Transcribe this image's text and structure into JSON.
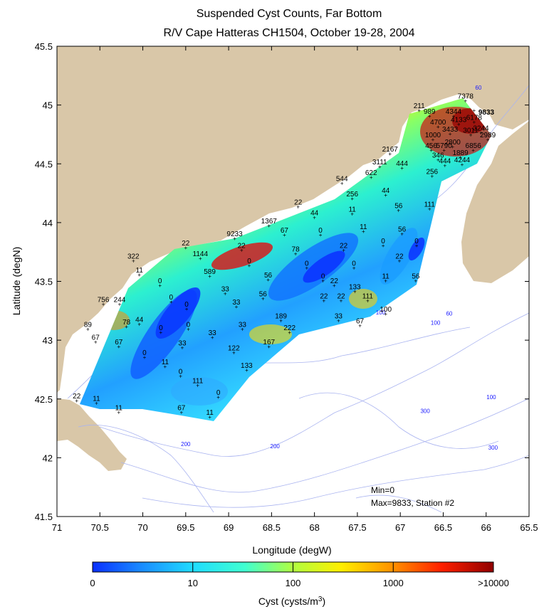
{
  "title_line1": "Suspended Cyst Counts, Far Bottom",
  "title_line2": "R/V Cape Hatteras CH1504, October 19-28, 2004",
  "xlabel": "Longitude (degW)",
  "ylabel": "Latitude (degN)",
  "colorbar_label": "Cyst (cysts/m",
  "colorbar_label_sup": "3",
  "colorbar_label_end": ")",
  "colorbar_ticks": [
    "0",
    "10",
    "100",
    "1000",
    ">10000"
  ],
  "min_text": "Min=0",
  "max_text": "Max=9833, Station #2",
  "highlight": {
    "label": "9833",
    "color": "#e00000"
  },
  "chart_data": {
    "type": "heatmap",
    "xlim": [
      71,
      65.5
    ],
    "ylim": [
      41.5,
      45.5
    ],
    "x_ticks": [
      "71",
      "70.5",
      "70",
      "69.5",
      "69",
      "68.5",
      "68",
      "67.5",
      "67",
      "66.5",
      "66",
      "65.5"
    ],
    "y_ticks": [
      "41.5",
      "42",
      "42.5",
      "43",
      "43.5",
      "44",
      "44.5",
      "45",
      "45.5"
    ],
    "stations": [
      {
        "lon": 66.24,
        "lat": 45.03,
        "value": "7378"
      },
      {
        "lon": 66.14,
        "lat": 44.95,
        "value": "9833"
      },
      {
        "lon": 66.78,
        "lat": 44.95,
        "value": "211"
      },
      {
        "lon": 66.66,
        "lat": 44.9,
        "value": "989"
      },
      {
        "lon": 66.38,
        "lat": 44.9,
        "value": "4344"
      },
      {
        "lon": 66.14,
        "lat": 44.85,
        "value": "6178"
      },
      {
        "lon": 66.32,
        "lat": 44.83,
        "value": "4133"
      },
      {
        "lon": 66.56,
        "lat": 44.81,
        "value": "4700"
      },
      {
        "lon": 66.06,
        "lat": 44.76,
        "value": "3244"
      },
      {
        "lon": 66.42,
        "lat": 44.75,
        "value": "3433"
      },
      {
        "lon": 66.18,
        "lat": 44.74,
        "value": "3011"
      },
      {
        "lon": 65.98,
        "lat": 44.7,
        "value": "2989"
      },
      {
        "lon": 66.62,
        "lat": 44.7,
        "value": "1000"
      },
      {
        "lon": 66.39,
        "lat": 44.64,
        "value": "2800"
      },
      {
        "lon": 66.64,
        "lat": 44.61,
        "value": "456"
      },
      {
        "lon": 66.49,
        "lat": 44.61,
        "value": "5790"
      },
      {
        "lon": 66.15,
        "lat": 44.61,
        "value": "6856"
      },
      {
        "lon": 66.3,
        "lat": 44.55,
        "value": "1889"
      },
      {
        "lon": 67.12,
        "lat": 44.58,
        "value": "2167"
      },
      {
        "lon": 66.56,
        "lat": 44.53,
        "value": "346"
      },
      {
        "lon": 66.28,
        "lat": 44.49,
        "value": "4244"
      },
      {
        "lon": 66.48,
        "lat": 44.48,
        "value": "444"
      },
      {
        "lon": 67.24,
        "lat": 44.47,
        "value": "3111"
      },
      {
        "lon": 66.98,
        "lat": 44.46,
        "value": "444"
      },
      {
        "lon": 66.63,
        "lat": 44.39,
        "value": "256"
      },
      {
        "lon": 67.34,
        "lat": 44.38,
        "value": "622"
      },
      {
        "lon": 67.68,
        "lat": 44.33,
        "value": "544"
      },
      {
        "lon": 67.56,
        "lat": 44.2,
        "value": "256"
      },
      {
        "lon": 67.17,
        "lat": 44.23,
        "value": "44"
      },
      {
        "lon": 68.19,
        "lat": 44.13,
        "value": "22"
      },
      {
        "lon": 67.02,
        "lat": 44.1,
        "value": "56"
      },
      {
        "lon": 66.66,
        "lat": 44.11,
        "value": "111"
      },
      {
        "lon": 67.56,
        "lat": 44.07,
        "value": "11"
      },
      {
        "lon": 68.0,
        "lat": 44.04,
        "value": "44"
      },
      {
        "lon": 68.53,
        "lat": 43.97,
        "value": "1367"
      },
      {
        "lon": 67.43,
        "lat": 43.92,
        "value": "11"
      },
      {
        "lon": 66.98,
        "lat": 43.9,
        "value": "56"
      },
      {
        "lon": 68.35,
        "lat": 43.89,
        "value": "67"
      },
      {
        "lon": 67.93,
        "lat": 43.89,
        "value": "0"
      },
      {
        "lon": 68.93,
        "lat": 43.86,
        "value": "9233"
      },
      {
        "lon": 66.81,
        "lat": 43.8,
        "value": "0"
      },
      {
        "lon": 67.2,
        "lat": 43.8,
        "value": "0"
      },
      {
        "lon": 69.5,
        "lat": 43.78,
        "value": "22"
      },
      {
        "lon": 68.85,
        "lat": 43.76,
        "value": "22"
      },
      {
        "lon": 67.66,
        "lat": 43.76,
        "value": "22"
      },
      {
        "lon": 68.22,
        "lat": 43.73,
        "value": "78"
      },
      {
        "lon": 67.01,
        "lat": 43.67,
        "value": "22"
      },
      {
        "lon": 69.33,
        "lat": 43.69,
        "value": "1144"
      },
      {
        "lon": 70.11,
        "lat": 43.67,
        "value": "322"
      },
      {
        "lon": 68.76,
        "lat": 43.63,
        "value": "0"
      },
      {
        "lon": 68.09,
        "lat": 43.61,
        "value": "0"
      },
      {
        "lon": 67.54,
        "lat": 43.61,
        "value": "0"
      },
      {
        "lon": 69.22,
        "lat": 43.54,
        "value": "589"
      },
      {
        "lon": 70.04,
        "lat": 43.55,
        "value": "11"
      },
      {
        "lon": 68.54,
        "lat": 43.51,
        "value": "56"
      },
      {
        "lon": 67.17,
        "lat": 43.5,
        "value": "11"
      },
      {
        "lon": 66.82,
        "lat": 43.5,
        "value": "56"
      },
      {
        "lon": 67.9,
        "lat": 43.5,
        "value": "0"
      },
      {
        "lon": 69.8,
        "lat": 43.46,
        "value": "0"
      },
      {
        "lon": 67.77,
        "lat": 43.46,
        "value": "22"
      },
      {
        "lon": 67.53,
        "lat": 43.41,
        "value": "133"
      },
      {
        "lon": 69.04,
        "lat": 43.39,
        "value": "33"
      },
      {
        "lon": 68.6,
        "lat": 43.35,
        "value": "56"
      },
      {
        "lon": 67.89,
        "lat": 43.33,
        "value": "22"
      },
      {
        "lon": 67.69,
        "lat": 43.33,
        "value": "22"
      },
      {
        "lon": 67.38,
        "lat": 43.33,
        "value": "111"
      },
      {
        "lon": 69.67,
        "lat": 43.32,
        "value": "0"
      },
      {
        "lon": 70.46,
        "lat": 43.3,
        "value": "756"
      },
      {
        "lon": 70.27,
        "lat": 43.3,
        "value": "244"
      },
      {
        "lon": 69.49,
        "lat": 43.26,
        "value": "0"
      },
      {
        "lon": 68.91,
        "lat": 43.28,
        "value": "33"
      },
      {
        "lon": 67.17,
        "lat": 43.22,
        "value": "100"
      },
      {
        "lon": 68.39,
        "lat": 43.16,
        "value": "189"
      },
      {
        "lon": 67.72,
        "lat": 43.16,
        "value": "33"
      },
      {
        "lon": 70.04,
        "lat": 43.13,
        "value": "44"
      },
      {
        "lon": 70.19,
        "lat": 43.11,
        "value": "78"
      },
      {
        "lon": 69.47,
        "lat": 43.09,
        "value": "0"
      },
      {
        "lon": 68.84,
        "lat": 43.09,
        "value": "33"
      },
      {
        "lon": 67.47,
        "lat": 43.12,
        "value": "67"
      },
      {
        "lon": 70.64,
        "lat": 43.09,
        "value": "89"
      },
      {
        "lon": 69.79,
        "lat": 43.06,
        "value": "0"
      },
      {
        "lon": 68.29,
        "lat": 43.06,
        "value": "222"
      },
      {
        "lon": 69.19,
        "lat": 43.02,
        "value": "33"
      },
      {
        "lon": 70.55,
        "lat": 42.98,
        "value": "67"
      },
      {
        "lon": 70.28,
        "lat": 42.94,
        "value": "67"
      },
      {
        "lon": 68.53,
        "lat": 42.94,
        "value": "167"
      },
      {
        "lon": 69.54,
        "lat": 42.93,
        "value": "33"
      },
      {
        "lon": 68.94,
        "lat": 42.89,
        "value": "122"
      },
      {
        "lon": 69.98,
        "lat": 42.85,
        "value": "0"
      },
      {
        "lon": 69.74,
        "lat": 42.77,
        "value": "11"
      },
      {
        "lon": 68.79,
        "lat": 42.74,
        "value": "133"
      },
      {
        "lon": 69.56,
        "lat": 42.69,
        "value": "0"
      },
      {
        "lon": 69.36,
        "lat": 42.61,
        "value": "111"
      },
      {
        "lon": 69.12,
        "lat": 42.51,
        "value": "0"
      },
      {
        "lon": 70.77,
        "lat": 42.48,
        "value": "22"
      },
      {
        "lon": 70.54,
        "lat": 42.46,
        "value": "11"
      },
      {
        "lon": 70.28,
        "lat": 42.38,
        "value": "11"
      },
      {
        "lon": 69.55,
        "lat": 42.38,
        "value": "67"
      },
      {
        "lon": 69.22,
        "lat": 42.34,
        "value": "11"
      }
    ],
    "contour_labels": [
      {
        "lon": 66.09,
        "lat": 45.13,
        "value": "60"
      },
      {
        "lon": 66.43,
        "lat": 43.21,
        "value": "60"
      },
      {
        "lon": 66.59,
        "lat": 43.13,
        "value": "100"
      },
      {
        "lon": 67.23,
        "lat": 43.22,
        "value": "100"
      },
      {
        "lon": 65.94,
        "lat": 42.5,
        "value": "100"
      },
      {
        "lon": 66.71,
        "lat": 42.38,
        "value": "300"
      },
      {
        "lon": 65.92,
        "lat": 42.07,
        "value": "300"
      },
      {
        "lon": 68.46,
        "lat": 42.08,
        "value": "200"
      },
      {
        "lon": 69.5,
        "lat": 42.1,
        "value": "200"
      }
    ]
  }
}
